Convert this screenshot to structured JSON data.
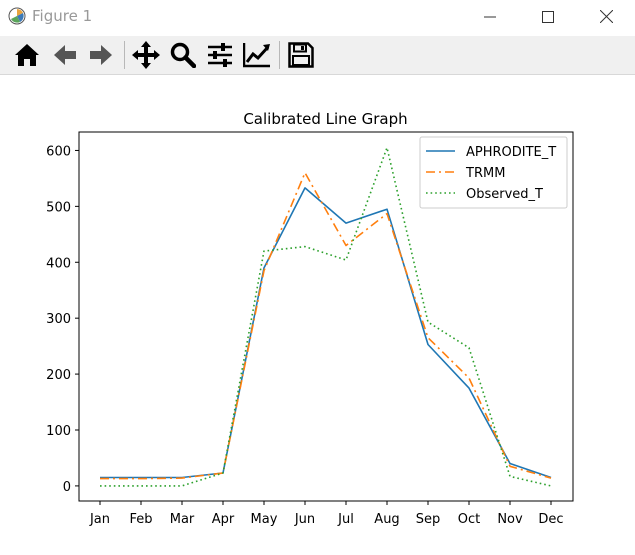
{
  "window": {
    "title": "Figure 1"
  },
  "toolbar": {
    "buttons": [
      {
        "name": "home-icon"
      },
      {
        "name": "back-arrow-icon"
      },
      {
        "name": "forward-arrow-icon"
      },
      {
        "name": "pan-icon"
      },
      {
        "name": "zoom-icon"
      },
      {
        "name": "configure-subplots-icon"
      },
      {
        "name": "edit-axis-icon"
      },
      {
        "name": "save-icon"
      }
    ]
  },
  "chart_data": {
    "type": "line",
    "title": "Calibrated Line Graph",
    "xlabel": "",
    "ylabel": "",
    "categories": [
      "Jan",
      "Feb",
      "Mar",
      "Apr",
      "May",
      "Jun",
      "Jul",
      "Aug",
      "Sep",
      "Oct",
      "Nov",
      "Dec"
    ],
    "ylim": [
      -27,
      633
    ],
    "yticks": [
      0,
      100,
      200,
      300,
      400,
      500,
      600
    ],
    "grid": false,
    "legend_position": "top-right",
    "series": [
      {
        "name": "APHRODITE_T",
        "color": "#1f77b4",
        "style": "solid",
        "values": [
          15,
          15,
          15,
          23,
          390,
          533,
          470,
          495,
          253,
          175,
          40,
          15
        ]
      },
      {
        "name": "TRMM",
        "color": "#ff7f0e",
        "style": "dashdot",
        "values": [
          13,
          13,
          14,
          23,
          385,
          560,
          430,
          487,
          265,
          193,
          35,
          14
        ]
      },
      {
        "name": "Observed_T",
        "color": "#2ca02c",
        "style": "dotted",
        "values": [
          0,
          0,
          0,
          23,
          420,
          428,
          404,
          605,
          293,
          247,
          17,
          0
        ]
      }
    ]
  }
}
